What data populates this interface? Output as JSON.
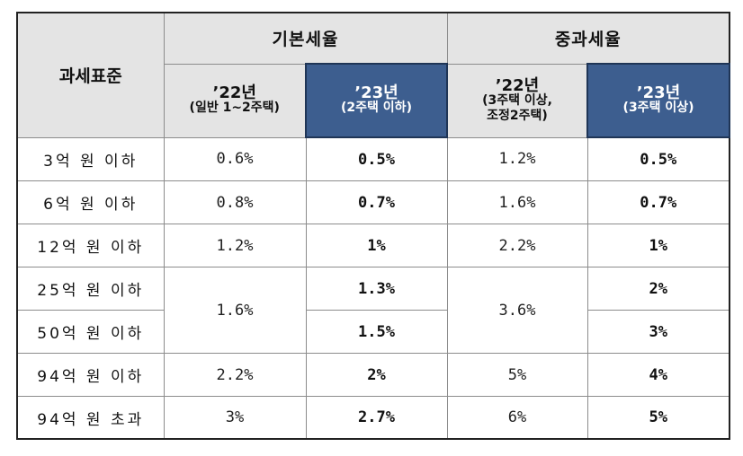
{
  "header": {
    "standard": "과세표준",
    "basic": "기본세율",
    "heavy": "중과세율",
    "cols": [
      {
        "year": "’22년",
        "note": "(일반 1~2주택)"
      },
      {
        "year": "’23년",
        "note": "(2주택 이하)"
      },
      {
        "year": "’22년",
        "note": "(3주택 이상,\n조정2주택)"
      },
      {
        "year": "’23년",
        "note": "(3주택 이상)"
      }
    ]
  },
  "rows": [
    {
      "label": "3억 원 이하",
      "basic22": "0.6%",
      "basic23": "0.5%",
      "heavy22": "1.2%",
      "heavy23": "0.5%"
    },
    {
      "label": "6억 원 이하",
      "basic22": "0.8%",
      "basic23": "0.7%",
      "heavy22": "1.6%",
      "heavy23": "0.7%"
    },
    {
      "label": "12억 원 이하",
      "basic22": "1.2%",
      "basic23": "1%",
      "heavy22": "2.2%",
      "heavy23": "1%"
    },
    {
      "label": "25억 원 이하",
      "basic22": "1.6%",
      "basic23": "1.3%",
      "heavy22": "3.6%",
      "heavy23": "2%"
    },
    {
      "label": "50억 원 이하",
      "basic23": "1.5%",
      "heavy23": "3%"
    },
    {
      "label": "94억 원 이하",
      "basic22": "2.2%",
      "basic23": "2%",
      "heavy22": "5%",
      "heavy23": "4%"
    },
    {
      "label": "94억 원 초과",
      "basic22": "3%",
      "basic23": "2.7%",
      "heavy22": "6%",
      "heavy23": "5%"
    }
  ]
}
